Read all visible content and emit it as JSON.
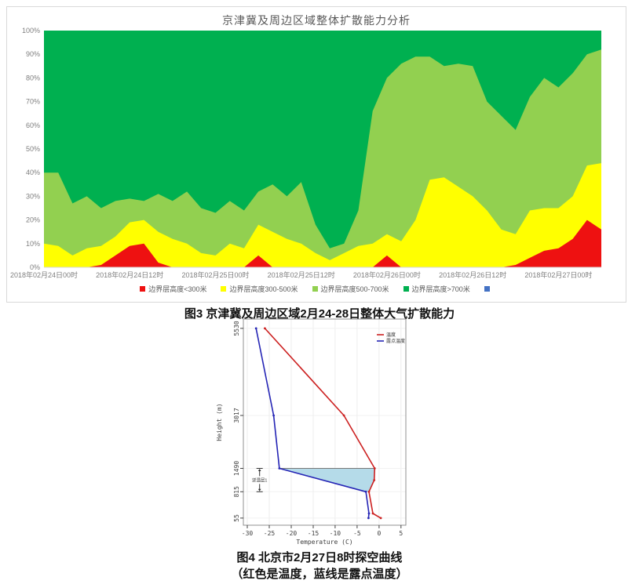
{
  "figure3": {
    "title": "京津冀及周边区域整体扩散能力分析",
    "caption": "图3 京津冀及周边区域2月24-28日整体大气扩散能力"
  },
  "figure4": {
    "caption_line1": "图4 北京市2月27日8时探空曲线",
    "caption_line2": "（红色是温度，蓝线是露点温度）"
  },
  "chart_data": [
    {
      "type": "area",
      "stacked_percent": true,
      "title": "京津冀及周边区域整体扩散能力分析",
      "x_unit": "hours from 2018-02-24 00时",
      "x_range": [
        0,
        78
      ],
      "ylim": [
        0,
        100
      ],
      "grid": false,
      "legend_position": "bottom",
      "y_tick_labels": [
        "0%",
        "10%",
        "20%",
        "30%",
        "40%",
        "50%",
        "60%",
        "70%",
        "80%",
        "90%",
        "100%"
      ],
      "x_tick_hours": [
        0,
        12,
        24,
        36,
        48,
        60,
        72
      ],
      "x_tick_labels": [
        "2018年02月24日00时",
        "2018年02月24日12时",
        "2018年02月25日00时",
        "2018年02月25日12时",
        "2018年02月26日00时",
        "2018年02月26日12时",
        "2018年02月27日00时"
      ],
      "x": [
        0,
        2,
        4,
        6,
        8,
        10,
        12,
        14,
        16,
        18,
        20,
        22,
        24,
        26,
        28,
        30,
        32,
        34,
        36,
        38,
        40,
        42,
        44,
        46,
        48,
        50,
        52,
        54,
        56,
        58,
        60,
        62,
        64,
        66,
        68,
        70,
        72,
        74,
        76,
        78
      ],
      "series": [
        {
          "name": "边界层高度<300米",
          "color": "#ee1111",
          "values": [
            0,
            0,
            0,
            0,
            1,
            5,
            9,
            10,
            2,
            0,
            0,
            0,
            0,
            0,
            0,
            5,
            0,
            0,
            0,
            0,
            0,
            0,
            0,
            0,
            5,
            0,
            0,
            0,
            0,
            0,
            0,
            0,
            0,
            1,
            4,
            7,
            8,
            12,
            20,
            16
          ]
        },
        {
          "name": "边界层高度300-500米",
          "color": "#ffff00",
          "values": [
            10,
            9,
            5,
            8,
            8,
            8,
            10,
            10,
            13,
            12,
            10,
            6,
            5,
            10,
            8,
            13,
            15,
            12,
            10,
            6,
            3,
            6,
            9,
            10,
            9,
            11,
            20,
            37,
            38,
            34,
            30,
            24,
            16,
            13,
            20,
            18,
            17,
            18,
            23,
            28
          ]
        },
        {
          "name": "边界层高度500-700米",
          "color": "#92d050",
          "values": [
            30,
            31,
            22,
            22,
            16,
            15,
            10,
            8,
            16,
            16,
            22,
            19,
            18,
            18,
            16,
            14,
            20,
            18,
            26,
            12,
            5,
            4,
            15,
            56,
            66,
            75,
            69,
            52,
            47,
            52,
            55,
            46,
            48,
            44,
            48,
            55,
            51,
            52,
            47,
            48
          ]
        },
        {
          "name": "边界层高度>700米",
          "color": "#00b050",
          "values": [
            60,
            60,
            73,
            70,
            75,
            72,
            71,
            72,
            69,
            72,
            68,
            75,
            77,
            72,
            76,
            68,
            65,
            70,
            64,
            82,
            92,
            90,
            76,
            34,
            20,
            14,
            11,
            11,
            15,
            14,
            15,
            30,
            36,
            42,
            28,
            20,
            24,
            18,
            10,
            8
          ]
        }
      ],
      "extra_legend_marker": {
        "label": "",
        "color": "#4472c4"
      }
    },
    {
      "type": "line",
      "xlabel": "Temperature (C)",
      "ylabel": "Height (m)",
      "xlim": [
        -30.9,
        6.1
      ],
      "ylim": [
        -150,
        5800
      ],
      "x_ticks": [
        -30,
        -25,
        -20,
        -15,
        -10,
        -5,
        0,
        5
      ],
      "y_ticks": [
        55,
        815,
        1490,
        3017,
        5530
      ],
      "grid": true,
      "legend_position": "top-right",
      "series": [
        {
          "name": "温度",
          "color": "#cc2020",
          "points": [
            [
              -26,
              5530
            ],
            [
              -8,
              3017
            ],
            [
              -1,
              1490
            ],
            [
              -1.1,
              1150
            ],
            [
              -2.3,
              815
            ],
            [
              -1.4,
              190
            ],
            [
              0.4,
              55
            ]
          ]
        },
        {
          "name": "露点温度",
          "color": "#2525b5",
          "points": [
            [
              -28,
              5530
            ],
            [
              -24,
              3017
            ],
            [
              -22.7,
              1490
            ],
            [
              -3,
              815
            ],
            [
              -2.3,
              190
            ],
            [
              -2.4,
              55
            ]
          ]
        }
      ],
      "inversion_layer": {
        "label": "逆温层1",
        "top_m": 1490,
        "bottom_m": 815,
        "fill": "#b5dbe9",
        "top_line_color": "#777777",
        "polygon": [
          [
            -22.7,
            1490
          ],
          [
            -1,
            1490
          ],
          [
            -1.1,
            1150
          ],
          [
            -2.3,
            815
          ],
          [
            -3,
            815
          ]
        ]
      }
    }
  ]
}
